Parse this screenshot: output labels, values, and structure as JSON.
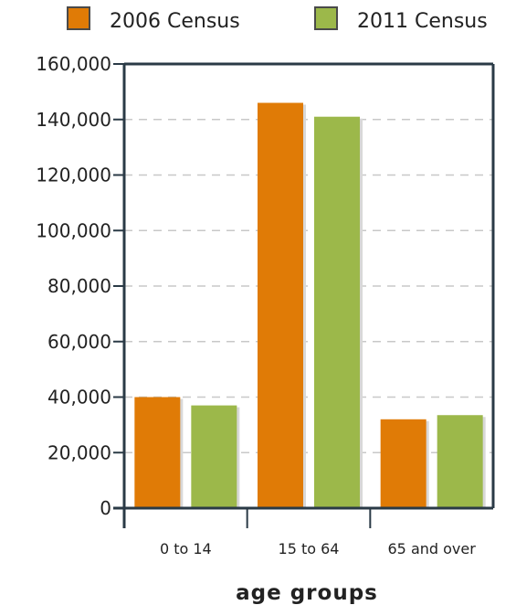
{
  "chart_data": {
    "type": "bar",
    "title": "",
    "xlabel": "age groups",
    "ylabel": "",
    "categories": [
      "0 to 14",
      "15 to 64",
      "65 and over"
    ],
    "series": [
      {
        "name": "2006 Census",
        "color": "#e07b06",
        "values": [
          40000,
          146000,
          32000
        ]
      },
      {
        "name": "2011 Census",
        "color": "#9cb84a",
        "values": [
          37000,
          141000,
          33500
        ]
      }
    ],
    "ylim": [
      0,
      160000
    ],
    "yticks": [
      0,
      20000,
      40000,
      60000,
      80000,
      100000,
      120000,
      140000,
      160000
    ],
    "ytick_labels": [
      "0",
      "20,000",
      "40,000",
      "60,000",
      "80,000",
      "100,000",
      "120,000",
      "140,000",
      "160,000"
    ],
    "grid": true,
    "legend_position": "top"
  }
}
